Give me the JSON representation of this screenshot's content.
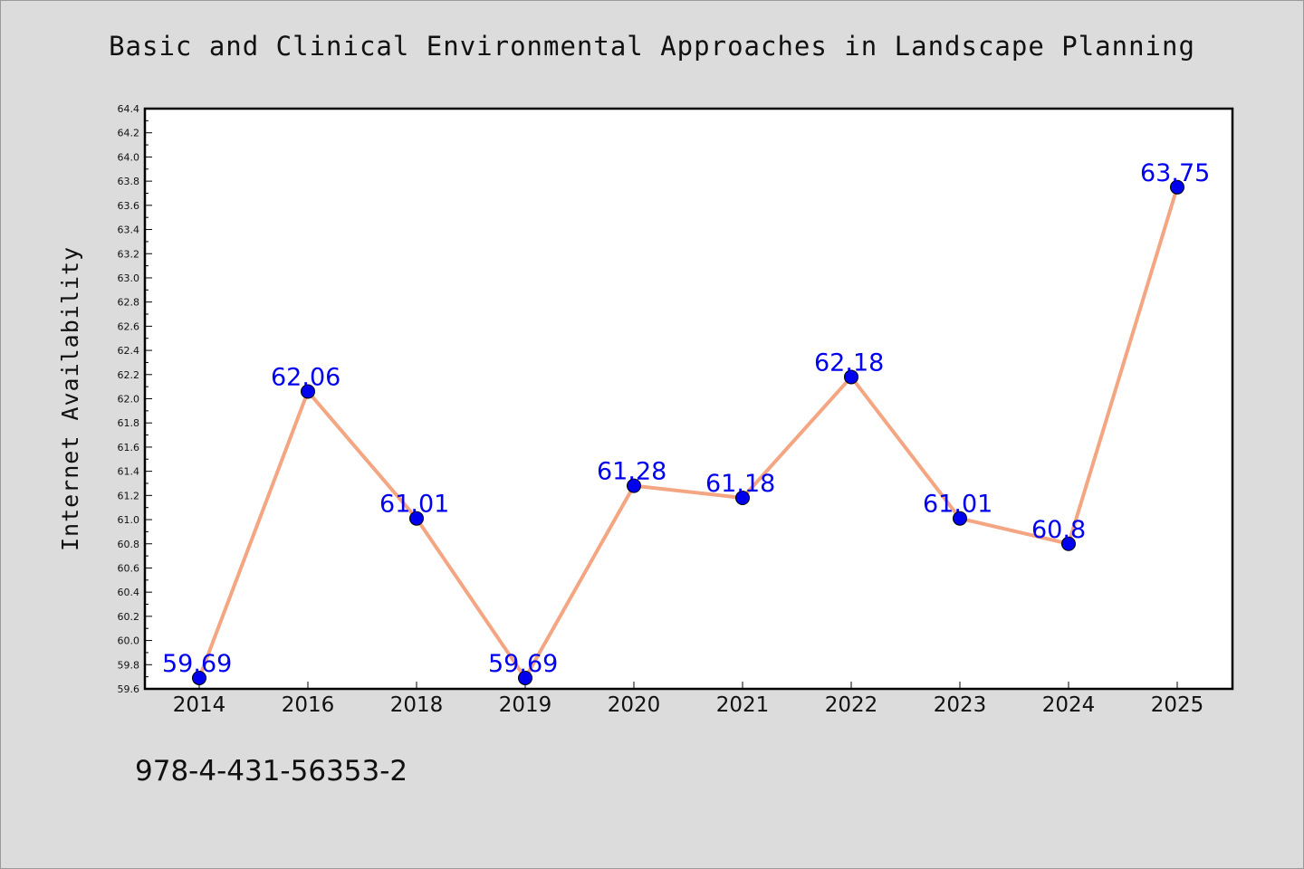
{
  "chart_data": {
    "type": "line",
    "title": "Basic and Clinical Environmental Approaches in Landscape Planning",
    "xlabel": "",
    "ylabel": "Internet Availability",
    "categories": [
      "2014",
      "2016",
      "2018",
      "2019",
      "2020",
      "2021",
      "2022",
      "2023",
      "2024",
      "2025"
    ],
    "series": [
      {
        "values": [
          59.69,
          62.06,
          61.01,
          59.69,
          61.28,
          61.18,
          62.18,
          61.01,
          60.8,
          63.75
        ],
        "data_labels": [
          "59.69",
          "62.06",
          "61.01",
          "59.69",
          "61.28",
          "61.18",
          "62.18",
          "61.01",
          "60.8",
          "63.75"
        ]
      }
    ],
    "ylim": [
      59.6,
      64.4
    ],
    "yticks": [
      "59.6",
      "59.8",
      "60.0",
      "60.2",
      "60.4",
      "60.6",
      "60.8",
      "61.0",
      "61.2",
      "61.4",
      "61.6",
      "61.8",
      "62.0",
      "62.2",
      "62.4",
      "62.6",
      "62.8",
      "63.0",
      "63.2",
      "63.4",
      "63.6",
      "63.8",
      "64.0",
      "64.2",
      "64.4"
    ],
    "grid": false,
    "legend": "none",
    "colors": {
      "line": "#f4a582",
      "marker": "#0000ee",
      "label": "#0000ee",
      "background": "#dcdcdc",
      "plot_background": "#ffffff"
    }
  },
  "footer": {
    "code": "978-4-431-56353-2"
  }
}
